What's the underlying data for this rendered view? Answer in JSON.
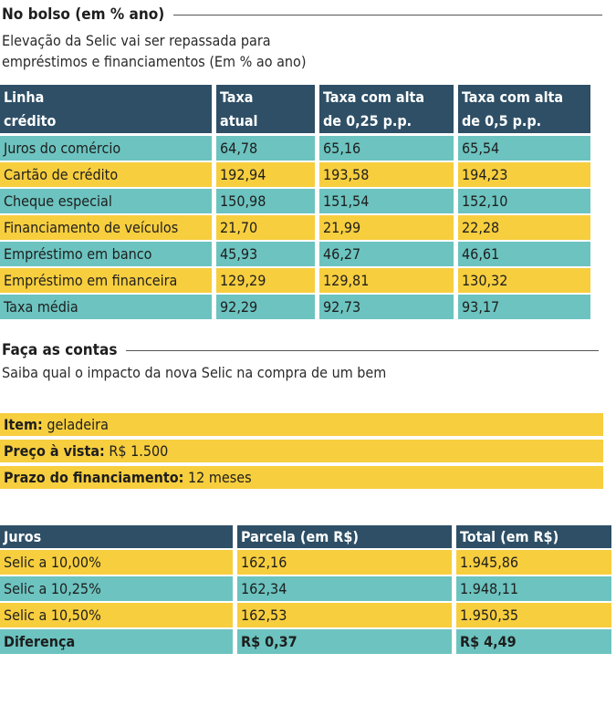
{
  "section1": {
    "title": "No bolso (em % ano)",
    "subtitle_line1": "Elevação da Selic vai ser repassada para",
    "subtitle_line2": "empréstimos e financiamentos (Em % ao ano)"
  },
  "table1": {
    "headers": [
      [
        "Linha",
        "crédito"
      ],
      [
        "Taxa",
        "atual"
      ],
      [
        "Taxa com alta",
        "de 0,25 p.p."
      ],
      [
        "Taxa com alta",
        "de 0,5 p.p."
      ]
    ],
    "rows": [
      [
        "Juros do comércio",
        "64,78",
        "65,16",
        "65,54"
      ],
      [
        "Cartão de crédito",
        "192,94",
        "193,58",
        "194,23"
      ],
      [
        "Cheque especial",
        "150,98",
        "151,54",
        "152,10"
      ],
      [
        "Financiamento de veículos",
        "21,70",
        "21,99",
        "22,28"
      ],
      [
        "Empréstimo em banco",
        "45,93",
        "46,27",
        "46,61"
      ],
      [
        "Empréstimo em financeira",
        "129,29",
        "129,81",
        "130,32"
      ],
      [
        "Taxa média",
        "92,29",
        "92,73",
        "93,17"
      ]
    ]
  },
  "section2": {
    "title": "Faça as contas",
    "subtitle": "Saiba qual o impacto da nova Selic na compra de um bem"
  },
  "item": {
    "item_label": "Item:",
    "item_value": "geladeira",
    "price_label": "Preço à vista:",
    "price_value": "R$ 1.500",
    "term_label": "Prazo do financiamento:",
    "term_value": "12 meses"
  },
  "table2": {
    "headers": [
      "Juros",
      "Parcela (em R$)",
      "Total (em R$)"
    ],
    "rows": [
      [
        "Selic a 10,00%",
        "162,16",
        "1.945,86"
      ],
      [
        "Selic a 10,25%",
        "162,34",
        "1.948,11"
      ],
      [
        "Selic a 10,50%",
        "162,53",
        "1.950,35"
      ],
      [
        "Diferença",
        "R$ 0,37",
        "R$ 4,49"
      ]
    ]
  },
  "colors": {
    "header": "#2e4f66",
    "teal": "#6cc3bf",
    "yellow": "#f7ce3e"
  }
}
